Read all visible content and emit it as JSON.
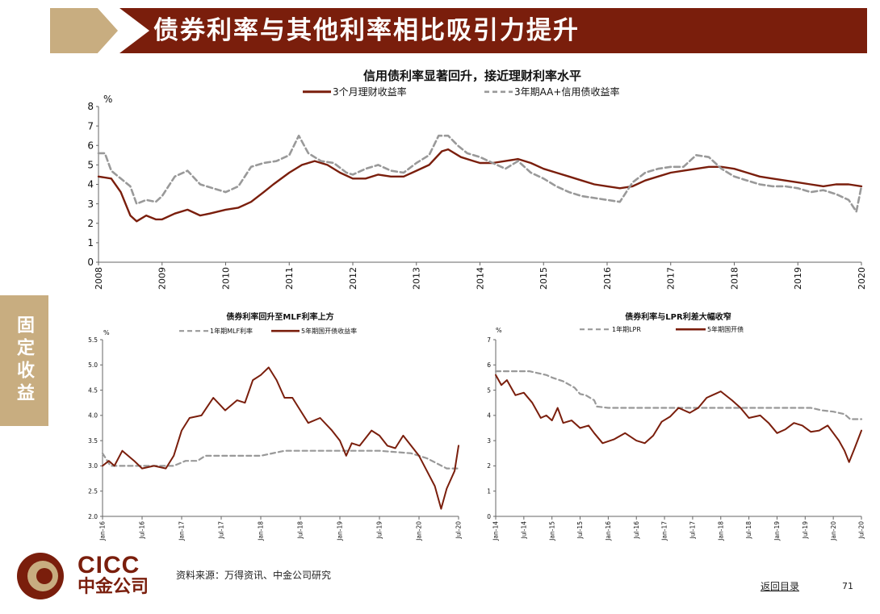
{
  "header": {
    "title": "债券利率与其他利率相比吸引力提升"
  },
  "side_tab": {
    "label": "固定收益"
  },
  "footer": {
    "source": "资料来源：万得资讯、中金公司研究",
    "back_link": "返回目录",
    "page_number": "71",
    "logo_en": "CICC",
    "logo_cn": "中金公司"
  },
  "colors": {
    "brand": "#7a1e0c",
    "tan": "#c8ad80",
    "dark_red_line": "#7a1e0c",
    "gray_dash": "#999999"
  },
  "chart_data": [
    {
      "id": "main",
      "type": "line",
      "title": "信用债利率显著回升，接近理财利率水平",
      "ylabel": "%",
      "ylim": [
        0,
        8
      ],
      "yticks": [
        "0",
        "1",
        "2",
        "3",
        "4",
        "5",
        "6",
        "7",
        "8"
      ],
      "xlim": [
        2008,
        2020
      ],
      "xticks": [
        "2008",
        "2009",
        "2010",
        "2011",
        "2012",
        "2013",
        "2014",
        "2015",
        "2016",
        "2017",
        "2018",
        "2019",
        "2020"
      ],
      "legend": "top",
      "series": [
        {
          "name": "3个月理财收益率",
          "style": "solid",
          "color": "#7a1e0c",
          "x": [
            2008,
            2008.2,
            2008.35,
            2008.5,
            2008.6,
            2008.75,
            2008.9,
            2009,
            2009.2,
            2009.4,
            2009.6,
            2009.75,
            2010,
            2010.2,
            2010.4,
            2010.6,
            2010.75,
            2011,
            2011.2,
            2011.4,
            2011.6,
            2011.8,
            2012,
            2012.2,
            2012.4,
            2012.6,
            2012.8,
            2013,
            2013.2,
            2013.4,
            2013.5,
            2013.7,
            2013.9,
            2014,
            2014.2,
            2014.4,
            2014.6,
            2014.8,
            2015,
            2015.2,
            2015.4,
            2015.6,
            2015.8,
            2016,
            2016.2,
            2016.4,
            2016.6,
            2016.8,
            2017,
            2017.2,
            2017.4,
            2017.6,
            2017.8,
            2018,
            2018.2,
            2018.4,
            2018.6,
            2018.8,
            2019,
            2019.2,
            2019.4,
            2019.6,
            2019.8,
            2020
          ],
          "values": [
            4.4,
            4.3,
            3.6,
            2.4,
            2.1,
            2.4,
            2.2,
            2.2,
            2.5,
            2.7,
            2.4,
            2.5,
            2.7,
            2.8,
            3.1,
            3.6,
            4.0,
            4.6,
            5.0,
            5.2,
            5.0,
            4.6,
            4.3,
            4.3,
            4.5,
            4.4,
            4.4,
            4.7,
            5.0,
            5.7,
            5.8,
            5.4,
            5.2,
            5.1,
            5.1,
            5.2,
            5.3,
            5.1,
            4.8,
            4.6,
            4.4,
            4.2,
            4.0,
            3.9,
            3.8,
            3.9,
            4.2,
            4.4,
            4.6,
            4.7,
            4.8,
            4.9,
            4.9,
            4.8,
            4.6,
            4.4,
            4.3,
            4.2,
            4.1,
            4.0,
            3.9,
            4.0,
            4.0,
            3.9
          ]
        },
        {
          "name": "3年期AA+信用债收益率",
          "style": "dashed",
          "color": "#999999",
          "x": [
            2008,
            2008.1,
            2008.2,
            2008.35,
            2008.5,
            2008.6,
            2008.75,
            2008.9,
            2009,
            2009.2,
            2009.4,
            2009.6,
            2009.8,
            2010,
            2010.2,
            2010.4,
            2010.6,
            2010.8,
            2011,
            2011.15,
            2011.3,
            2011.5,
            2011.7,
            2011.9,
            2012,
            2012.2,
            2012.4,
            2012.6,
            2012.8,
            2013,
            2013.2,
            2013.35,
            2013.5,
            2013.65,
            2013.8,
            2014,
            2014.2,
            2014.4,
            2014.6,
            2014.8,
            2015,
            2015.2,
            2015.4,
            2015.6,
            2015.8,
            2016,
            2016.2,
            2016.4,
            2016.6,
            2016.8,
            2017,
            2017.2,
            2017.4,
            2017.6,
            2017.8,
            2018,
            2018.2,
            2018.4,
            2018.6,
            2018.8,
            2019,
            2019.2,
            2019.4,
            2019.6,
            2019.8,
            2019.92,
            2020
          ],
          "values": [
            5.6,
            5.6,
            4.7,
            4.3,
            3.9,
            3.0,
            3.2,
            3.1,
            3.4,
            4.4,
            4.7,
            4.0,
            3.8,
            3.6,
            3.9,
            4.9,
            5.1,
            5.2,
            5.5,
            6.5,
            5.6,
            5.2,
            5.1,
            4.6,
            4.5,
            4.8,
            5.0,
            4.7,
            4.6,
            5.1,
            5.5,
            6.5,
            6.5,
            6.0,
            5.6,
            5.4,
            5.1,
            4.8,
            5.2,
            4.6,
            4.3,
            3.9,
            3.6,
            3.4,
            3.3,
            3.2,
            3.1,
            4.1,
            4.6,
            4.8,
            4.9,
            4.9,
            5.5,
            5.4,
            4.8,
            4.4,
            4.2,
            4.0,
            3.9,
            3.9,
            3.8,
            3.6,
            3.7,
            3.5,
            3.2,
            2.6,
            3.9
          ]
        }
      ]
    },
    {
      "id": "left",
      "type": "line",
      "title": "债券利率回升至MLF利率上方",
      "ylabel": "%",
      "ylim": [
        2.0,
        5.5
      ],
      "yticks": [
        "2.0",
        "2.5",
        "3.0",
        "3.5",
        "4.0",
        "4.5",
        "5.0",
        "5.5"
      ],
      "xlim": [
        2016.0,
        2020.5
      ],
      "xticks": [
        "Jan-16",
        "Jul-16",
        "Jan-17",
        "Jul-17",
        "Jan-18",
        "Jul-18",
        "Jan-19",
        "Jul-19",
        "Jan-20",
        "Jul-20"
      ],
      "legend": "top",
      "series": [
        {
          "name": "1年期MLF利率",
          "style": "dashed",
          "color": "#999999",
          "x": [
            2016.0,
            2016.1,
            2016.2,
            2016.9,
            2017.05,
            2017.2,
            2017.3,
            2018.0,
            2018.3,
            2019.5,
            2019.9,
            2020.1,
            2020.35,
            2020.5
          ],
          "values": [
            3.25,
            3.0,
            3.0,
            3.0,
            3.1,
            3.1,
            3.2,
            3.2,
            3.3,
            3.3,
            3.25,
            3.15,
            2.95,
            2.95
          ]
        },
        {
          "name": "5年期国开债收益率",
          "style": "solid",
          "color": "#7a1e0c",
          "x": [
            2016.0,
            2016.08,
            2016.15,
            2016.25,
            2016.4,
            2016.5,
            2016.65,
            2016.8,
            2016.9,
            2017.0,
            2017.1,
            2017.25,
            2017.4,
            2017.55,
            2017.7,
            2017.8,
            2017.9,
            2018.0,
            2018.1,
            2018.2,
            2018.3,
            2018.4,
            2018.5,
            2018.6,
            2018.75,
            2018.9,
            2019.0,
            2019.08,
            2019.15,
            2019.25,
            2019.4,
            2019.5,
            2019.6,
            2019.7,
            2019.8,
            2019.9,
            2020.0,
            2020.1,
            2020.2,
            2020.28,
            2020.35,
            2020.45,
            2020.5
          ],
          "values": [
            3.0,
            3.1,
            3.0,
            3.3,
            3.1,
            2.95,
            3.0,
            2.95,
            3.2,
            3.7,
            3.95,
            4.0,
            4.35,
            4.1,
            4.3,
            4.25,
            4.7,
            4.8,
            4.95,
            4.7,
            4.35,
            4.35,
            4.1,
            3.85,
            3.95,
            3.7,
            3.5,
            3.2,
            3.45,
            3.4,
            3.7,
            3.6,
            3.4,
            3.35,
            3.6,
            3.4,
            3.2,
            2.9,
            2.6,
            2.15,
            2.55,
            2.9,
            3.4
          ]
        }
      ]
    },
    {
      "id": "right",
      "type": "line",
      "title": "债券利率与LPR利差大幅收窄",
      "ylabel": "%",
      "ylim": [
        0,
        7
      ],
      "yticks": [
        "0",
        "1",
        "2",
        "3",
        "4",
        "5",
        "6",
        "7"
      ],
      "xlim": [
        2014.0,
        2020.5
      ],
      "xticks": [
        "Jan-14",
        "Jul-14",
        "Jan-15",
        "Jul-15",
        "Jan-16",
        "Jul-16",
        "Jan-17",
        "Jul-17",
        "Jan-18",
        "Jul-18",
        "Jan-19",
        "Jul-19",
        "Jan-20",
        "Jul-20"
      ],
      "legend": "top",
      "series": [
        {
          "name": "1年期LPR",
          "style": "dashed",
          "color": "#999999",
          "x": [
            2014.0,
            2014.6,
            2014.9,
            2015.0,
            2015.2,
            2015.4,
            2015.5,
            2015.6,
            2015.75,
            2015.8,
            2016.0,
            2019.6,
            2019.8,
            2020.0,
            2020.2,
            2020.3,
            2020.5
          ],
          "values": [
            5.75,
            5.75,
            5.6,
            5.5,
            5.35,
            5.1,
            4.85,
            4.8,
            4.6,
            4.35,
            4.3,
            4.3,
            4.2,
            4.15,
            4.05,
            3.85,
            3.85
          ]
        },
        {
          "name": "5年期国开债",
          "style": "solid",
          "color": "#7a1e0c",
          "x": [
            2014.0,
            2014.1,
            2014.2,
            2014.35,
            2014.5,
            2014.65,
            2014.8,
            2014.9,
            2015.0,
            2015.1,
            2015.2,
            2015.35,
            2015.5,
            2015.65,
            2015.75,
            2015.9,
            2016.1,
            2016.3,
            2016.5,
            2016.65,
            2016.8,
            2016.95,
            2017.1,
            2017.25,
            2017.45,
            2017.6,
            2017.75,
            2017.85,
            2018.0,
            2018.2,
            2018.35,
            2018.5,
            2018.7,
            2018.85,
            2019.0,
            2019.15,
            2019.3,
            2019.45,
            2019.6,
            2019.75,
            2019.9,
            2020.0,
            2020.1,
            2020.2,
            2020.28,
            2020.38,
            2020.5
          ],
          "values": [
            5.6,
            5.2,
            5.4,
            4.8,
            4.9,
            4.5,
            3.9,
            4.0,
            3.8,
            4.3,
            3.7,
            3.8,
            3.5,
            3.6,
            3.3,
            2.9,
            3.05,
            3.3,
            3.0,
            2.9,
            3.2,
            3.75,
            3.95,
            4.3,
            4.1,
            4.3,
            4.7,
            4.8,
            4.95,
            4.6,
            4.3,
            3.9,
            4.0,
            3.7,
            3.3,
            3.45,
            3.7,
            3.6,
            3.35,
            3.4,
            3.6,
            3.3,
            3.0,
            2.6,
            2.15,
            2.7,
            3.4
          ]
        }
      ]
    }
  ]
}
